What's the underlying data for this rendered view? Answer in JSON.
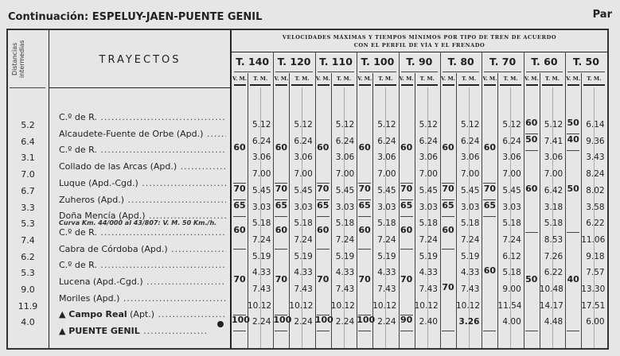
{
  "header": {
    "prefix": "Continuación:",
    "route": "ESPELUY-JAEN-PUENTE GENIL",
    "side": "Par"
  },
  "table": {
    "dist_header": "Distancias intermedias",
    "route_header": "TRAYECTOS",
    "speed_header_l1": "VELOCIDADES MÁXIMAS Y TIEMPOS MÍNIMOS POR TIPO DE TREN DE ACUERDO",
    "speed_header_l2": "CON EL PERFIL DE VÍA Y EL FRENADO",
    "vm_label": "V. M.",
    "tm_label": "T. M.",
    "stations": [
      {
        "name": "C.º de R.",
        "suffix": ""
      },
      {
        "name": "Alcaudete-Fuente de Orbe (Apd.)",
        "suffix": ""
      },
      {
        "name": "C.º de R.",
        "suffix": ""
      },
      {
        "name": "Collado de las Arcas (Apd.)",
        "suffix": ""
      },
      {
        "name": "Luque (Apd.-Cgd.)",
        "suffix": ""
      },
      {
        "name": "Zuheros (Apd.)",
        "suffix": ""
      },
      {
        "name": "Doña Mencía (Apd.)",
        "suffix": ""
      },
      {
        "name": "C.º de R.",
        "suffix": ""
      },
      {
        "name": "Cabra de Córdoba (Apd.)",
        "suffix": ""
      },
      {
        "name": "C.º de R.",
        "suffix": ""
      },
      {
        "name": "Lucena (Apd.-Cgd.)",
        "suffix": ""
      },
      {
        "name": "Moriles (Apd.)",
        "suffix": ""
      },
      {
        "name": "▲ Campo Real",
        "suffix": " (Apt.)",
        "bold": true
      },
      {
        "name": "▲ PUENTE GENIL",
        "suffix": "",
        "bold": true
      }
    ],
    "curve_note": "Curva Km. 44/000 al 43/807: V. M. 50 Km./h.",
    "distances": [
      "5.2",
      "6.4",
      "3.1",
      "7.0",
      "6.7",
      "3.3",
      "5.3",
      "7.4",
      "6.2",
      "5.3",
      "9.0",
      "11.9",
      "4.0"
    ],
    "train_types": [
      {
        "label": "T. 140",
        "vm": [
          {
            "v": "60",
            "from": 0,
            "to": 3
          },
          {
            "v": "70",
            "from": 4,
            "to": 4
          },
          {
            "v": "65",
            "from": 5,
            "to": 5
          },
          {
            "v": "60",
            "from": 6,
            "to": 7
          },
          {
            "v": "70",
            "from": 8,
            "to": 11
          },
          {
            "v": "100",
            "from": 12,
            "to": 12
          }
        ],
        "tm": [
          "5.12",
          "6.24",
          "3.06",
          "7.00",
          "5.45",
          "3.03",
          "5.18",
          "7.24",
          "5.19",
          "4.33",
          "7.43",
          "10.12",
          "2.24"
        ]
      },
      {
        "label": "T. 120",
        "vm": [
          {
            "v": "60",
            "from": 0,
            "to": 3
          },
          {
            "v": "70",
            "from": 4,
            "to": 4
          },
          {
            "v": "65",
            "from": 5,
            "to": 5
          },
          {
            "v": "60",
            "from": 6,
            "to": 7
          },
          {
            "v": "70",
            "from": 8,
            "to": 11
          },
          {
            "v": "100",
            "from": 12,
            "to": 12
          }
        ],
        "tm": [
          "5.12",
          "6.24",
          "3.06",
          "7.00",
          "5.45",
          "3.03",
          "5.18",
          "7.24",
          "5.19",
          "4.33",
          "7.43",
          "10.12",
          "2.24"
        ]
      },
      {
        "label": "T. 110",
        "vm": [
          {
            "v": "60",
            "from": 0,
            "to": 3
          },
          {
            "v": "70",
            "from": 4,
            "to": 4
          },
          {
            "v": "65",
            "from": 5,
            "to": 5
          },
          {
            "v": "60",
            "from": 6,
            "to": 7
          },
          {
            "v": "70",
            "from": 8,
            "to": 11
          },
          {
            "v": "100",
            "from": 12,
            "to": 12
          }
        ],
        "tm": [
          "5.12",
          "6.24",
          "3.06",
          "7.00",
          "5.45",
          "3.03",
          "5.18",
          "7.24",
          "5.19",
          "4.33",
          "7.43",
          "10.12",
          "2.24"
        ]
      },
      {
        "label": "T. 100",
        "vm": [
          {
            "v": "60",
            "from": 0,
            "to": 3
          },
          {
            "v": "70",
            "from": 4,
            "to": 4
          },
          {
            "v": "65",
            "from": 5,
            "to": 5
          },
          {
            "v": "60",
            "from": 6,
            "to": 7
          },
          {
            "v": "70",
            "from": 8,
            "to": 11
          },
          {
            "v": "100",
            "from": 12,
            "to": 12
          }
        ],
        "tm": [
          "5.12",
          "6.24",
          "3.06",
          "7.00",
          "5.45",
          "3.03",
          "5.18",
          "7.24",
          "5.19",
          "4.33",
          "7.43",
          "10.12",
          "2.24"
        ]
      },
      {
        "label": "T. 90",
        "vm": [
          {
            "v": "60",
            "from": 0,
            "to": 3
          },
          {
            "v": "70",
            "from": 4,
            "to": 4
          },
          {
            "v": "65",
            "from": 5,
            "to": 5
          },
          {
            "v": "60",
            "from": 6,
            "to": 7
          },
          {
            "v": "70",
            "from": 8,
            "to": 11
          },
          {
            "v": "90",
            "from": 12,
            "to": 12
          }
        ],
        "tm": [
          "5.12",
          "6.24",
          "3.06",
          "7.00",
          "5.45",
          "3.03",
          "5.18",
          "7.24",
          "5.19",
          "4.33",
          "7.43",
          "10.12",
          "2.40"
        ]
      },
      {
        "label": "T. 80",
        "vm": [
          {
            "v": "60",
            "from": 0,
            "to": 3
          },
          {
            "v": "70",
            "from": 4,
            "to": 4
          },
          {
            "v": "65",
            "from": 5,
            "to": 5
          },
          {
            "v": "60",
            "from": 6,
            "to": 7
          },
          {
            "v": "70",
            "from": 8,
            "to": 12
          }
        ],
        "tm": [
          "5.12",
          "6.24",
          "3.06",
          "7.00",
          "5.45",
          "3.03",
          "5.18",
          "7.24",
          "5.19",
          "4.33",
          "7.43",
          "10.12",
          "3.26"
        ]
      },
      {
        "label": "T. 70",
        "vm": [
          {
            "v": "60",
            "from": 0,
            "to": 3
          },
          {
            "v": "70",
            "from": 4,
            "to": 4
          },
          {
            "v": "65",
            "from": 5,
            "to": 5
          },
          {
            "v": "60",
            "from": 6,
            "to": 12
          }
        ],
        "tm": [
          "5.12",
          "6.24",
          "3.06",
          "7.00",
          "5.45",
          "3.03",
          "5.18",
          "7.24",
          "6.12",
          "5.18",
          "9.00",
          "11.54",
          "4.00"
        ]
      },
      {
        "label": "T. 60",
        "vm": [
          {
            "v": "60",
            "from": 0,
            "to": 0
          },
          {
            "v": "50",
            "from": 1,
            "to": 1
          },
          {
            "v": "60",
            "from": 2,
            "to": 6
          },
          {
            "v": "50",
            "from": 7,
            "to": 12
          }
        ],
        "tm": [
          "5.12",
          "7.41",
          "3.06",
          "7.00",
          "6.42",
          "3.18",
          "5.18",
          "8.53",
          "7.26",
          "6.22",
          "10.48",
          "14.17",
          "4.48"
        ]
      },
      {
        "label": "T. 50",
        "vm": [
          {
            "v": "50",
            "from": 0,
            "to": 0
          },
          {
            "v": "40",
            "from": 1,
            "to": 1
          },
          {
            "v": "50",
            "from": 2,
            "to": 6
          },
          {
            "v": "40",
            "from": 7,
            "to": 12
          }
        ],
        "tm": [
          "6.14",
          "9.36",
          "3.43",
          "8.24",
          "8.02",
          "3.58",
          "6.22",
          "11.06",
          "9.18",
          "7.57",
          "13.30",
          "17.51",
          "6.00"
        ]
      }
    ]
  }
}
